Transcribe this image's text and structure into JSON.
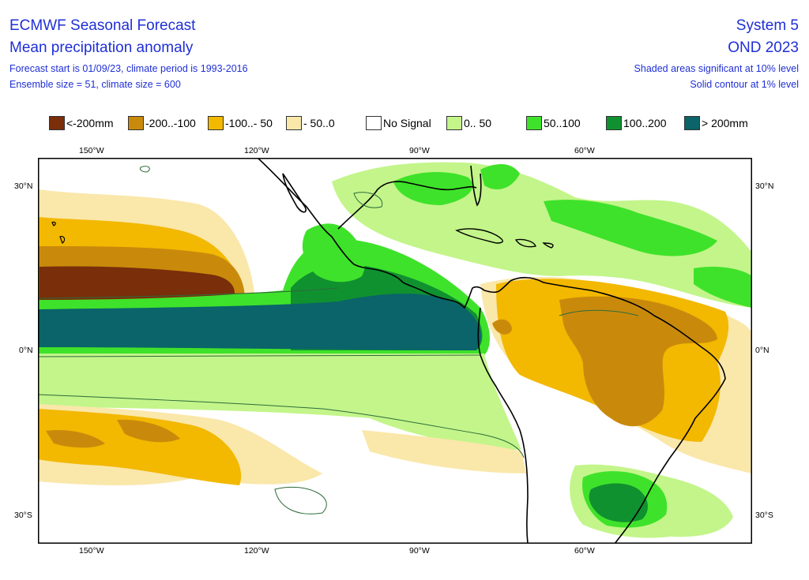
{
  "header": {
    "title": "ECMWF Seasonal Forecast",
    "subtitle": "Mean precipitation anomaly",
    "info1": "Forecast start is 01/09/23, climate period is 1993-2016",
    "info2": "Ensemble size = 51, climate size = 600",
    "system": "System 5",
    "season": "OND 2023",
    "note1": "Shaded areas significant at 10% level",
    "note2": "Solid contour at 1% level"
  },
  "legend": [
    {
      "label": "<-200mm",
      "color": "#7a2e0a"
    },
    {
      "label": "-200..-100",
      "color": "#c98a0c"
    },
    {
      "label": "-100..- 50",
      "color": "#f3b800"
    },
    {
      "label": "- 50..0",
      "color": "#fae7aa"
    },
    {
      "label": "No Signal",
      "color": "#ffffff"
    },
    {
      "label": "0.. 50",
      "color": "#c3f58a"
    },
    {
      "label": "50..100",
      "color": "#3fe22a"
    },
    {
      "label": "100..200",
      "color": "#10912f"
    },
    {
      "label": "> 200mm",
      "color": "#0a6469"
    }
  ],
  "axes": {
    "top_lon": [
      "150°W",
      "120°W",
      "90°W",
      "60°W"
    ],
    "bottom_lon": [
      "150°W",
      "120°W",
      "90°W",
      "60°W"
    ],
    "left_lat": [
      "30°N",
      "0°N",
      "30°S"
    ],
    "right_lat": [
      "30°N",
      "0°N",
      "30°S"
    ]
  }
}
